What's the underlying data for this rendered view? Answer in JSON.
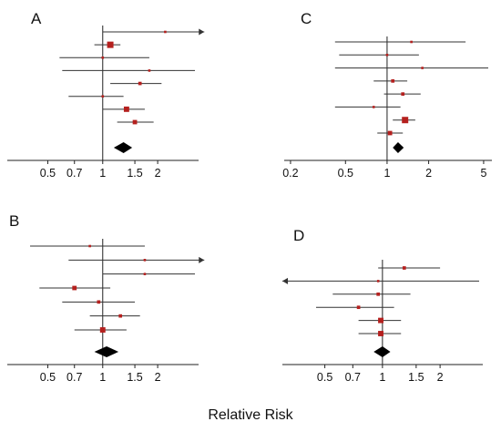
{
  "colors": {
    "line": "#333333",
    "axis": "#222222",
    "marker": "#b5201e",
    "diamond": "#000000"
  },
  "figure": {
    "xlabel": "Relative Risk"
  },
  "chart_data": [
    {
      "type": "forest",
      "panel": "A",
      "scale": "log",
      "xlim": [
        0.3,
        3.2
      ],
      "ticks": [
        {
          "value": 0.5,
          "label": "0.5"
        },
        {
          "value": 0.7,
          "label": "0.7"
        },
        {
          "value": 1,
          "label": "1"
        },
        {
          "value": 1.5,
          "label": "1.5"
        },
        {
          "value": 2,
          "label": "2"
        }
      ],
      "null_value": 1,
      "studies": [
        {
          "rr": 2.2,
          "lo": 1.0,
          "hi": 3.6,
          "weight": 1,
          "arrow_right": true
        },
        {
          "rr": 1.1,
          "lo": 0.9,
          "hi": 1.25,
          "weight": 5
        },
        {
          "rr": 1.0,
          "lo": 0.58,
          "hi": 1.8,
          "weight": 1
        },
        {
          "rr": 1.8,
          "lo": 0.6,
          "hi": 3.2,
          "weight": 1
        },
        {
          "rr": 1.6,
          "lo": 1.1,
          "hi": 2.1,
          "weight": 2
        },
        {
          "rr": 1.0,
          "lo": 0.65,
          "hi": 1.3,
          "weight": 1
        },
        {
          "rr": 1.35,
          "lo": 1.0,
          "hi": 1.7,
          "weight": 4
        },
        {
          "rr": 1.5,
          "lo": 1.2,
          "hi": 1.9,
          "weight": 3
        }
      ],
      "pooled": {
        "rr": 1.3,
        "lo": 1.15,
        "hi": 1.45
      }
    },
    {
      "type": "forest",
      "panel": "B",
      "scale": "log",
      "xlim": [
        0.3,
        3.2
      ],
      "ticks": [
        {
          "value": 0.5,
          "label": "0.5"
        },
        {
          "value": 0.7,
          "label": "0.7"
        },
        {
          "value": 1,
          "label": "1"
        },
        {
          "value": 1.5,
          "label": "1.5"
        },
        {
          "value": 2,
          "label": "2"
        }
      ],
      "null_value": 1,
      "studies": [
        {
          "rr": 0.85,
          "lo": 0.4,
          "hi": 1.7,
          "weight": 1
        },
        {
          "rr": 1.7,
          "lo": 0.65,
          "hi": 3.6,
          "weight": 1,
          "arrow_right": true
        },
        {
          "rr": 1.7,
          "lo": 1.0,
          "hi": 3.2,
          "weight": 1
        },
        {
          "rr": 0.7,
          "lo": 0.45,
          "hi": 1.1,
          "weight": 3
        },
        {
          "rr": 0.95,
          "lo": 0.6,
          "hi": 1.5,
          "weight": 2
        },
        {
          "rr": 1.25,
          "lo": 0.85,
          "hi": 1.6,
          "weight": 2
        },
        {
          "rr": 1.0,
          "lo": 0.7,
          "hi": 1.35,
          "weight": 4
        }
      ],
      "pooled": {
        "rr": 1.05,
        "lo": 0.9,
        "hi": 1.22
      }
    },
    {
      "type": "forest",
      "panel": "C",
      "scale": "log",
      "xlim": [
        0.18,
        5.4
      ],
      "ticks": [
        {
          "value": 0.2,
          "label": "0.2"
        },
        {
          "value": 0.5,
          "label": "0.5"
        },
        {
          "value": 1,
          "label": "1"
        },
        {
          "value": 2,
          "label": "2"
        },
        {
          "value": 5,
          "label": "5"
        }
      ],
      "null_value": 1,
      "studies": [
        {
          "rr": 1.5,
          "lo": 0.42,
          "hi": 3.7,
          "weight": 1
        },
        {
          "rr": 1.0,
          "lo": 0.45,
          "hi": 1.7,
          "weight": 1
        },
        {
          "rr": 1.8,
          "lo": 0.42,
          "hi": 5.4,
          "weight": 1
        },
        {
          "rr": 1.1,
          "lo": 0.8,
          "hi": 1.4,
          "weight": 2
        },
        {
          "rr": 1.3,
          "lo": 0.95,
          "hi": 1.75,
          "weight": 2
        },
        {
          "rr": 0.8,
          "lo": 0.42,
          "hi": 1.25,
          "weight": 1
        },
        {
          "rr": 1.35,
          "lo": 1.1,
          "hi": 1.6,
          "weight": 5
        },
        {
          "rr": 1.05,
          "lo": 0.85,
          "hi": 1.3,
          "weight": 3
        }
      ],
      "pooled": {
        "rr": 1.2,
        "lo": 1.1,
        "hi": 1.32
      }
    },
    {
      "type": "forest",
      "panel": "D",
      "scale": "log",
      "xlim": [
        0.3,
        3.2
      ],
      "ticks": [
        {
          "value": 0.5,
          "label": "0.5"
        },
        {
          "value": 0.7,
          "label": "0.7"
        },
        {
          "value": 1,
          "label": "1"
        },
        {
          "value": 1.5,
          "label": "1.5"
        },
        {
          "value": 2,
          "label": "2"
        }
      ],
      "null_value": 1,
      "studies": [
        {
          "rr": 1.3,
          "lo": 0.95,
          "hi": 2.0,
          "weight": 2
        },
        {
          "rr": 0.95,
          "lo": 0.3,
          "hi": 3.2,
          "weight": 1,
          "arrow_left": true
        },
        {
          "rr": 0.95,
          "lo": 0.55,
          "hi": 1.4,
          "weight": 2
        },
        {
          "rr": 0.75,
          "lo": 0.45,
          "hi": 1.15,
          "weight": 2
        },
        {
          "rr": 0.98,
          "lo": 0.75,
          "hi": 1.25,
          "weight": 4
        },
        {
          "rr": 0.98,
          "lo": 0.75,
          "hi": 1.25,
          "weight": 4
        }
      ],
      "pooled": {
        "rr": 1.0,
        "lo": 0.9,
        "hi": 1.1
      }
    }
  ]
}
